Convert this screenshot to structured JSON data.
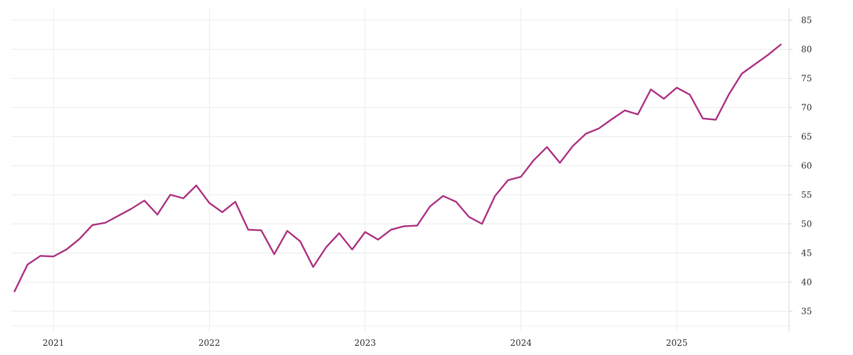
{
  "chart_data": {
    "type": "line",
    "title": "",
    "xlabel": "",
    "ylabel": "",
    "x_ticks": [
      {
        "label": "2021",
        "value": 2021.0
      },
      {
        "label": "2022",
        "value": 2022.0
      },
      {
        "label": "2023",
        "value": 2023.0
      },
      {
        "label": "2024",
        "value": 2024.0
      },
      {
        "label": "2025",
        "value": 2025.0
      }
    ],
    "y_ticks": [
      35,
      40,
      45,
      50,
      55,
      60,
      65,
      70,
      75,
      80,
      85
    ],
    "xlim": [
      2020.73,
      2025.72
    ],
    "ylim": [
      31.5,
      87
    ],
    "y_axis_position": "right",
    "grid": true,
    "series": [
      {
        "color": "#b03a87",
        "x": [
          "2020-10",
          "2020-11",
          "2020-12",
          "2021-01",
          "2021-02",
          "2021-03",
          "2021-04",
          "2021-05",
          "2021-06",
          "2021-07",
          "2021-08",
          "2021-09",
          "2021-10",
          "2021-11",
          "2021-12",
          "2022-01",
          "2022-02",
          "2022-03",
          "2022-04",
          "2022-05",
          "2022-06",
          "2022-07",
          "2022-08",
          "2022-09",
          "2022-10",
          "2022-11",
          "2022-12",
          "2023-01",
          "2023-02",
          "2023-03",
          "2023-04",
          "2023-05",
          "2023-06",
          "2023-07",
          "2023-08",
          "2023-09",
          "2023-10",
          "2023-11",
          "2023-12",
          "2024-01",
          "2024-02",
          "2024-03",
          "2024-04",
          "2024-05",
          "2024-06",
          "2024-07",
          "2024-08",
          "2024-09",
          "2024-10",
          "2024-11",
          "2024-12",
          "2025-01",
          "2025-02",
          "2025-03",
          "2025-04",
          "2025-05",
          "2025-06",
          "2025-07",
          "2025-08",
          "2025-09"
        ],
        "values": [
          38.4,
          43.0,
          44.5,
          44.4,
          45.6,
          47.4,
          49.8,
          50.2,
          51.4,
          52.6,
          54.0,
          51.6,
          55.0,
          54.4,
          56.6,
          53.6,
          52.0,
          53.8,
          49.0,
          48.9,
          44.8,
          48.8,
          47.0,
          42.6,
          46.0,
          48.4,
          45.6,
          48.6,
          47.3,
          49.0,
          49.6,
          49.7,
          53.0,
          54.8,
          53.8,
          51.2,
          50.0,
          54.8,
          57.5,
          58.1,
          61.0,
          63.2,
          60.5,
          63.4,
          65.5,
          66.4,
          68.0,
          69.5,
          68.8,
          73.1,
          71.5,
          73.4,
          72.2,
          68.1,
          67.9,
          72.2,
          75.8,
          77.4,
          79.0,
          80.8
        ]
      }
    ]
  }
}
